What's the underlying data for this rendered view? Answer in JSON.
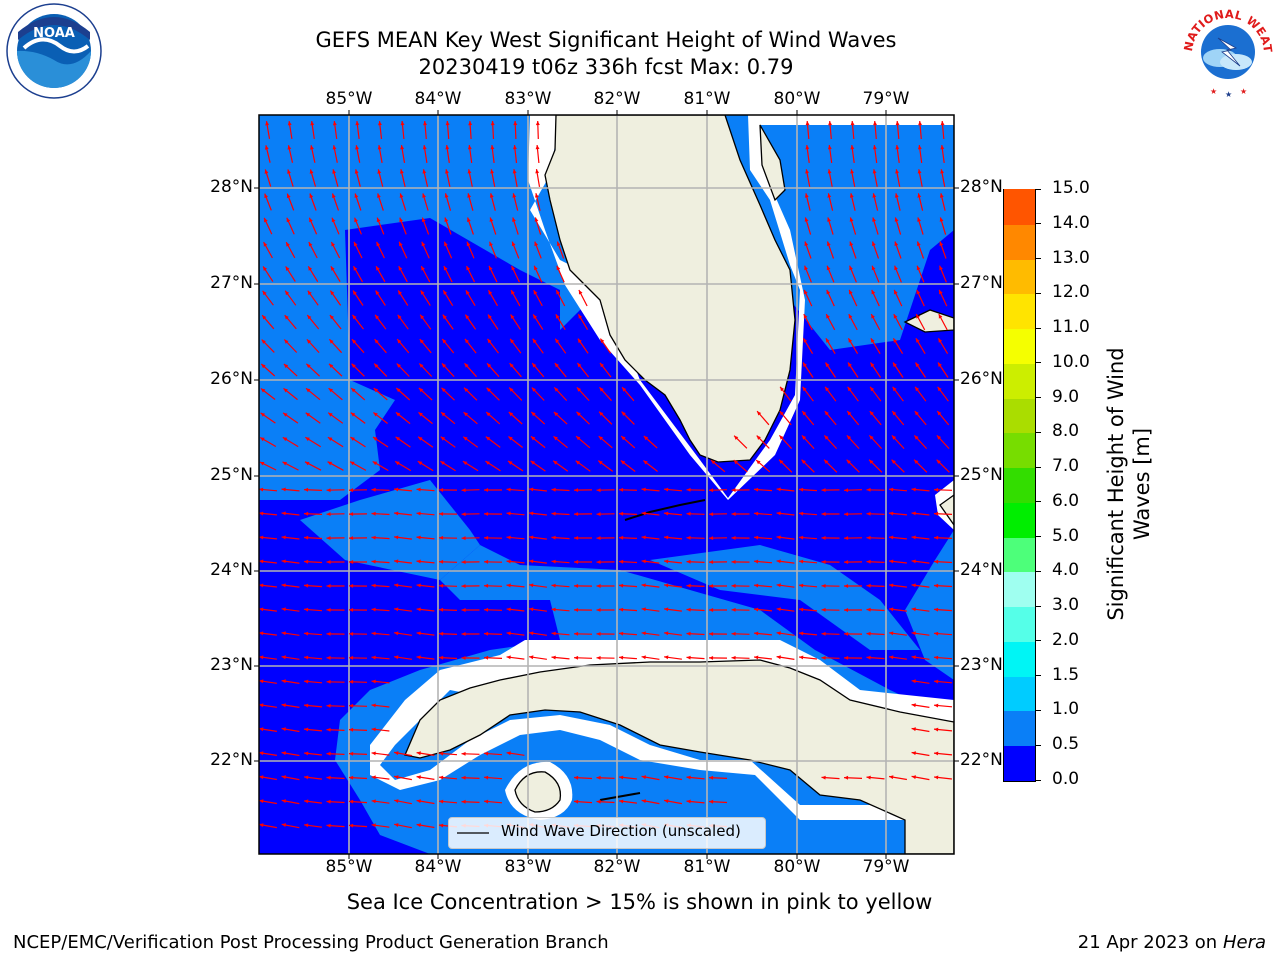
{
  "header": {
    "title_line1": "GEFS MEAN Key West Significant Height of Wind Waves",
    "title_line2": "20230419 t06z 336h fcst   Max: 0.79"
  },
  "logos": {
    "noaa_text": "NOAA",
    "nws_text": "NATIONAL WEATHER SERVICE"
  },
  "map": {
    "lon_labels": [
      "85°W",
      "84°W",
      "83°W",
      "82°W",
      "81°W",
      "80°W",
      "79°W"
    ],
    "lat_labels": [
      "28°N",
      "27°N",
      "26°N",
      "25°N",
      "24°N",
      "23°N",
      "22°N"
    ],
    "legend_label": "Wind Wave Direction (unscaled)",
    "colors": {
      "band_0_0p5": "#0000ff",
      "band_0p5_1": "#0a7ff7",
      "land": "#efefdf",
      "arrows": "#ff0000"
    }
  },
  "colorbar": {
    "label": "Significant Height of Wind Waves [m]",
    "label_line1": "Significant Height of Wind",
    "label_line2": "Waves [m]",
    "ticks": [
      "0.0",
      "0.5",
      "1.0",
      "1.5",
      "2.0",
      "3.0",
      "4.0",
      "5.0",
      "6.0",
      "7.0",
      "8.0",
      "9.0",
      "10.0",
      "11.0",
      "12.0",
      "13.0",
      "14.0",
      "15.0"
    ],
    "colors": [
      "#0000ff",
      "#0a7ff7",
      "#00ccff",
      "#00f5f5",
      "#55ffe8",
      "#9ffff0",
      "#4dff7a",
      "#00ee00",
      "#33dd00",
      "#77dd00",
      "#aadd00",
      "#ccee00",
      "#f5ff00",
      "#ffe400",
      "#ffbb00",
      "#ff8800",
      "#ff5500",
      "#ff2200",
      "#ff0000"
    ]
  },
  "notes": {
    "sea_ice": "Sea Ice Concentration > 15% is shown in pink to yellow"
  },
  "footer": {
    "left": "NCEP/EMC/Verification Post Processing Product Generation Branch",
    "right_prefix": "21 Apr 2023 on ",
    "right_host": "Hera"
  }
}
